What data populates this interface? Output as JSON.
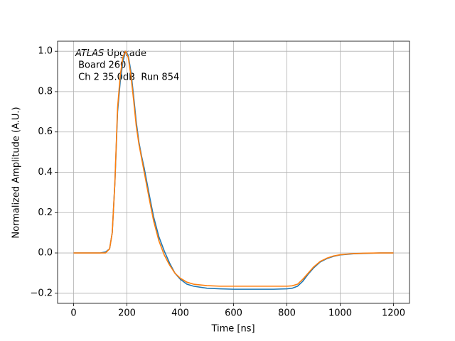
{
  "chart_data": {
    "type": "line",
    "xlabel": "Time [ns]",
    "ylabel": "Normalized Amplitude (A.U.)",
    "annotation": {
      "italic": "ATLAS",
      "text": " Upgrade",
      "lines": [
        " Board 260",
        " Ch 2 35.0dB  Run 854"
      ]
    },
    "x": [
      0,
      20,
      40,
      60,
      80,
      100,
      120,
      135,
      145,
      155,
      165,
      175,
      185,
      195,
      205,
      215,
      225,
      235,
      245,
      255,
      265,
      275,
      285,
      300,
      320,
      340,
      360,
      380,
      400,
      425,
      450,
      500,
      550,
      600,
      650,
      700,
      750,
      800,
      820,
      840,
      860,
      880,
      900,
      925,
      950,
      975,
      1000,
      1050,
      1100,
      1150,
      1200
    ],
    "series": [
      {
        "color": "#1f77b4",
        "values": [
          0,
          0,
          0,
          0,
          0,
          0,
          0.005,
          0.02,
          0.1,
          0.35,
          0.7,
          0.85,
          0.95,
          1.0,
          0.98,
          0.9,
          0.78,
          0.65,
          0.55,
          0.48,
          0.42,
          0.35,
          0.28,
          0.18,
          0.08,
          0.01,
          -0.05,
          -0.1,
          -0.13,
          -0.155,
          -0.165,
          -0.175,
          -0.178,
          -0.18,
          -0.18,
          -0.18,
          -0.18,
          -0.178,
          -0.175,
          -0.165,
          -0.14,
          -0.105,
          -0.075,
          -0.045,
          -0.028,
          -0.017,
          -0.01,
          -0.004,
          -0.002,
          0,
          0
        ]
      },
      {
        "color": "#ff7f0e",
        "values": [
          0,
          0,
          0,
          0,
          0,
          0,
          0,
          0.02,
          0.1,
          0.35,
          0.72,
          0.88,
          0.97,
          1.0,
          0.97,
          0.88,
          0.76,
          0.63,
          0.54,
          0.47,
          0.4,
          0.33,
          0.26,
          0.16,
          0.06,
          -0.01,
          -0.06,
          -0.1,
          -0.125,
          -0.145,
          -0.155,
          -0.162,
          -0.165,
          -0.165,
          -0.165,
          -0.165,
          -0.165,
          -0.165,
          -0.163,
          -0.155,
          -0.13,
          -0.1,
          -0.07,
          -0.042,
          -0.026,
          -0.015,
          -0.009,
          -0.003,
          -0.001,
          0,
          0
        ]
      }
    ],
    "xlim": [
      -60,
      1260
    ],
    "xticks": [
      0,
      200,
      400,
      600,
      800,
      1000,
      1200
    ],
    "ylim": [
      -0.25,
      1.05
    ],
    "yticks": [
      {
        "value": -0.2,
        "label": "−0.2"
      },
      {
        "value": 0,
        "label": "0.0"
      },
      0.2,
      0.4,
      0.6,
      0.8,
      {
        "value": 1,
        "label": "1.0"
      }
    ],
    "grid": true
  }
}
